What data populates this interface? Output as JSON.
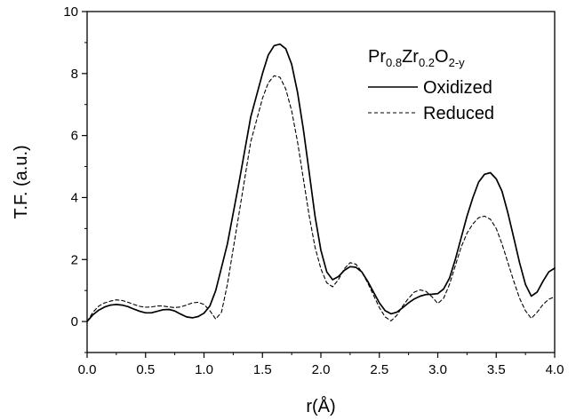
{
  "chart_data": {
    "type": "line",
    "xlabel": "r(Å)",
    "ylabel": "T.F. (a.u.)",
    "xlim": [
      0.0,
      4.0
    ],
    "ylim": [
      -1,
      10
    ],
    "x_ticks": [
      0.0,
      0.5,
      1.0,
      1.5,
      2.0,
      2.5,
      3.0,
      3.5,
      4.0
    ],
    "x_tick_labels": [
      "0.0",
      "0.5",
      "1.0",
      "1.5",
      "2.0",
      "2.5",
      "3.0",
      "3.5",
      "4.0"
    ],
    "y_ticks": [
      0,
      2,
      4,
      6,
      8,
      10
    ],
    "y_tick_labels": [
      "0",
      "2",
      "4",
      "6",
      "8",
      "10"
    ],
    "grid": false,
    "legend": {
      "position": "top-right",
      "title": {
        "base": "Pr",
        "s1": "0.8",
        "m1": "Zr",
        "s2": "0.2",
        "m2": "O",
        "s3": "2-y"
      }
    },
    "series": [
      {
        "name": "Oxidized",
        "style": "solid",
        "color": "#000000",
        "points": [
          [
            0.0,
            0.0
          ],
          [
            0.05,
            0.22
          ],
          [
            0.1,
            0.37
          ],
          [
            0.15,
            0.47
          ],
          [
            0.2,
            0.53
          ],
          [
            0.25,
            0.55
          ],
          [
            0.3,
            0.53
          ],
          [
            0.35,
            0.48
          ],
          [
            0.4,
            0.4
          ],
          [
            0.45,
            0.33
          ],
          [
            0.5,
            0.28
          ],
          [
            0.55,
            0.28
          ],
          [
            0.6,
            0.33
          ],
          [
            0.65,
            0.38
          ],
          [
            0.7,
            0.39
          ],
          [
            0.75,
            0.34
          ],
          [
            0.8,
            0.24
          ],
          [
            0.85,
            0.15
          ],
          [
            0.9,
            0.12
          ],
          [
            0.95,
            0.16
          ],
          [
            1.0,
            0.27
          ],
          [
            1.05,
            0.5
          ],
          [
            1.1,
            1.0
          ],
          [
            1.2,
            2.5
          ],
          [
            1.3,
            4.5
          ],
          [
            1.4,
            6.6
          ],
          [
            1.5,
            8.0
          ],
          [
            1.55,
            8.6
          ],
          [
            1.6,
            8.9
          ],
          [
            1.65,
            8.95
          ],
          [
            1.7,
            8.8
          ],
          [
            1.75,
            8.3
          ],
          [
            1.8,
            7.4
          ],
          [
            1.85,
            6.2
          ],
          [
            1.9,
            4.8
          ],
          [
            1.95,
            3.4
          ],
          [
            2.0,
            2.3
          ],
          [
            2.05,
            1.6
          ],
          [
            2.1,
            1.35
          ],
          [
            2.15,
            1.45
          ],
          [
            2.2,
            1.65
          ],
          [
            2.25,
            1.77
          ],
          [
            2.3,
            1.75
          ],
          [
            2.35,
            1.6
          ],
          [
            2.4,
            1.3
          ],
          [
            2.45,
            0.95
          ],
          [
            2.5,
            0.6
          ],
          [
            2.55,
            0.35
          ],
          [
            2.6,
            0.25
          ],
          [
            2.65,
            0.3
          ],
          [
            2.7,
            0.45
          ],
          [
            2.75,
            0.6
          ],
          [
            2.8,
            0.73
          ],
          [
            2.85,
            0.82
          ],
          [
            2.9,
            0.87
          ],
          [
            2.95,
            0.88
          ],
          [
            3.0,
            0.9
          ],
          [
            3.05,
            1.05
          ],
          [
            3.1,
            1.4
          ],
          [
            3.15,
            2.0
          ],
          [
            3.2,
            2.7
          ],
          [
            3.25,
            3.4
          ],
          [
            3.3,
            4.0
          ],
          [
            3.35,
            4.5
          ],
          [
            3.4,
            4.75
          ],
          [
            3.45,
            4.8
          ],
          [
            3.5,
            4.6
          ],
          [
            3.55,
            4.2
          ],
          [
            3.6,
            3.5
          ],
          [
            3.65,
            2.7
          ],
          [
            3.7,
            1.9
          ],
          [
            3.75,
            1.2
          ],
          [
            3.8,
            0.82
          ],
          [
            3.85,
            0.95
          ],
          [
            3.9,
            1.3
          ],
          [
            3.95,
            1.6
          ],
          [
            4.0,
            1.72
          ]
        ]
      },
      {
        "name": "Reduced",
        "style": "dashed",
        "color": "#000000",
        "points": [
          [
            0.0,
            0.0
          ],
          [
            0.05,
            0.3
          ],
          [
            0.1,
            0.5
          ],
          [
            0.15,
            0.6
          ],
          [
            0.2,
            0.66
          ],
          [
            0.25,
            0.7
          ],
          [
            0.3,
            0.68
          ],
          [
            0.35,
            0.62
          ],
          [
            0.4,
            0.55
          ],
          [
            0.45,
            0.49
          ],
          [
            0.5,
            0.46
          ],
          [
            0.55,
            0.47
          ],
          [
            0.6,
            0.5
          ],
          [
            0.65,
            0.5
          ],
          [
            0.7,
            0.47
          ],
          [
            0.75,
            0.45
          ],
          [
            0.8,
            0.47
          ],
          [
            0.85,
            0.53
          ],
          [
            0.9,
            0.6
          ],
          [
            0.95,
            0.62
          ],
          [
            1.0,
            0.55
          ],
          [
            1.05,
            0.35
          ],
          [
            1.1,
            0.08
          ],
          [
            1.15,
            0.3
          ],
          [
            1.2,
            1.2
          ],
          [
            1.3,
            3.5
          ],
          [
            1.4,
            5.8
          ],
          [
            1.5,
            7.2
          ],
          [
            1.55,
            7.7
          ],
          [
            1.6,
            7.93
          ],
          [
            1.65,
            7.88
          ],
          [
            1.7,
            7.5
          ],
          [
            1.75,
            6.8
          ],
          [
            1.8,
            5.8
          ],
          [
            1.85,
            4.6
          ],
          [
            1.9,
            3.4
          ],
          [
            1.95,
            2.4
          ],
          [
            2.0,
            1.7
          ],
          [
            2.05,
            1.25
          ],
          [
            2.1,
            1.12
          ],
          [
            2.15,
            1.35
          ],
          [
            2.2,
            1.7
          ],
          [
            2.25,
            1.9
          ],
          [
            2.3,
            1.85
          ],
          [
            2.35,
            1.6
          ],
          [
            2.4,
            1.25
          ],
          [
            2.45,
            0.85
          ],
          [
            2.5,
            0.45
          ],
          [
            2.55,
            0.15
          ],
          [
            2.6,
            0.02
          ],
          [
            2.65,
            0.2
          ],
          [
            2.7,
            0.5
          ],
          [
            2.75,
            0.75
          ],
          [
            2.8,
            0.95
          ],
          [
            2.85,
            1.02
          ],
          [
            2.9,
            0.97
          ],
          [
            2.95,
            0.8
          ],
          [
            3.0,
            0.58
          ],
          [
            3.05,
            0.75
          ],
          [
            3.1,
            1.2
          ],
          [
            3.15,
            1.8
          ],
          [
            3.2,
            2.4
          ],
          [
            3.25,
            2.85
          ],
          [
            3.3,
            3.15
          ],
          [
            3.35,
            3.35
          ],
          [
            3.4,
            3.4
          ],
          [
            3.45,
            3.3
          ],
          [
            3.5,
            3.0
          ],
          [
            3.55,
            2.5
          ],
          [
            3.6,
            1.9
          ],
          [
            3.65,
            1.3
          ],
          [
            3.7,
            0.75
          ],
          [
            3.75,
            0.35
          ],
          [
            3.8,
            0.1
          ],
          [
            3.85,
            0.3
          ],
          [
            3.9,
            0.55
          ],
          [
            3.95,
            0.72
          ],
          [
            4.0,
            0.8
          ]
        ]
      }
    ]
  }
}
